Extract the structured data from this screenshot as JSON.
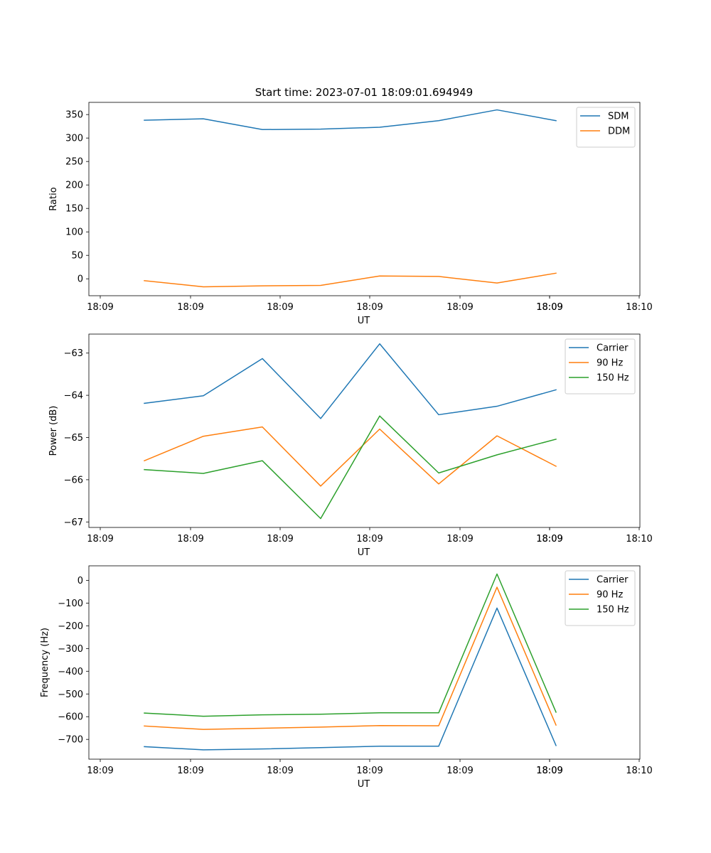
{
  "figure": {
    "title": "Start time: 2023-07-01 18:09:01.694949"
  },
  "chart_data": [
    {
      "type": "line",
      "ylabel": "Ratio",
      "xlabel": "UT",
      "x_tick_labels": [
        "18:09",
        "18:09",
        "18:09",
        "18:09",
        "18:09",
        "18:09",
        "18:09",
        "18:10"
      ],
      "y_ticks": [
        0,
        50,
        100,
        150,
        200,
        250,
        300,
        350
      ],
      "y_tick_labels": [
        "0",
        "50",
        "100",
        "150",
        "200",
        "250",
        "300",
        "350"
      ],
      "ylim": [
        -36,
        376
      ],
      "legend_position": "top-right",
      "series": [
        {
          "name": "SDM",
          "color": "#1f77b4",
          "values": [
            338,
            341,
            318,
            319,
            323,
            337,
            360,
            337
          ]
        },
        {
          "name": "DDM",
          "color": "#ff7f0e",
          "values": [
            -4,
            -17,
            -15,
            -14,
            6,
            5,
            -9,
            12
          ]
        }
      ]
    },
    {
      "type": "line",
      "ylabel": "Power (dB)",
      "xlabel": "UT",
      "x_tick_labels": [
        "18:09",
        "18:09",
        "18:09",
        "18:09",
        "18:09",
        "18:09",
        "18:09",
        "18:10"
      ],
      "y_ticks": [
        -67,
        -66,
        -65,
        -64,
        -63
      ],
      "y_tick_labels": [
        "−67",
        "−66",
        "−65",
        "−64",
        "−63"
      ],
      "ylim": [
        -67.13,
        -62.55
      ],
      "legend_position": "top-right",
      "series": [
        {
          "name": "Carrier",
          "color": "#1f77b4",
          "values": [
            -64.19,
            -64.01,
            -63.13,
            -64.55,
            -62.78,
            -64.46,
            -64.26,
            -63.87
          ]
        },
        {
          "name": "90 Hz",
          "color": "#ff7f0e",
          "values": [
            -65.55,
            -64.97,
            -64.75,
            -66.15,
            -64.8,
            -66.1,
            -64.96,
            -65.68
          ]
        },
        {
          "name": "150 Hz",
          "color": "#2ca02c",
          "values": [
            -65.76,
            -65.85,
            -65.55,
            -66.92,
            -64.49,
            -65.84,
            -65.41,
            -65.04
          ]
        }
      ]
    },
    {
      "type": "line",
      "ylabel": "Frequency (Hz)",
      "xlabel": "UT",
      "x_tick_labels": [
        "18:09",
        "18:09",
        "18:09",
        "18:09",
        "18:09",
        "18:09",
        "18:09",
        "18:10"
      ],
      "y_ticks": [
        -700,
        -600,
        -500,
        -400,
        -300,
        -200,
        -100,
        0
      ],
      "y_tick_labels": [
        "−700",
        "−600",
        "−500",
        "−400",
        "−300",
        "−200",
        "−100",
        "0"
      ],
      "ylim": [
        -787,
        64
      ],
      "legend_position": "top-right",
      "series": [
        {
          "name": "Carrier",
          "color": "#1f77b4",
          "values": [
            -732,
            -746,
            -742,
            -736,
            -730,
            -730,
            -122,
            -727
          ]
        },
        {
          "name": "90 Hz",
          "color": "#ff7f0e",
          "values": [
            -641,
            -656,
            -651,
            -646,
            -639,
            -640,
            -30,
            -637
          ]
        },
        {
          "name": "150 Hz",
          "color": "#2ca02c",
          "values": [
            -584,
            -598,
            -592,
            -589,
            -583,
            -583,
            28,
            -580
          ]
        }
      ]
    }
  ]
}
